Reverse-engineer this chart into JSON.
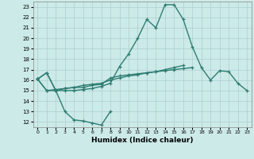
{
  "xlabel": "Humidex (Indice chaleur)",
  "xlim": [
    -0.5,
    23.5
  ],
  "ylim": [
    11.5,
    23.5
  ],
  "yticks": [
    12,
    13,
    14,
    15,
    16,
    17,
    18,
    19,
    20,
    21,
    22,
    23
  ],
  "xticks": [
    0,
    1,
    2,
    3,
    4,
    5,
    6,
    7,
    8,
    9,
    10,
    11,
    12,
    13,
    14,
    15,
    16,
    17,
    18,
    19,
    20,
    21,
    22,
    23
  ],
  "background_color": "#cceae8",
  "grid_color": "#aacfcd",
  "line_color": "#2e7d72",
  "line_width": 1.0,
  "marker": "+",
  "marker_size": 3.5,
  "series": [
    [
      16.1,
      16.7,
      15.0,
      13.0,
      12.2,
      12.1,
      11.9,
      11.7,
      13.0,
      null,
      null,
      null,
      null,
      null,
      null,
      null,
      null,
      null,
      null,
      null,
      null,
      null,
      null,
      null
    ],
    [
      16.1,
      15.0,
      15.0,
      15.2,
      15.3,
      15.3,
      15.5,
      15.6,
      16.2,
      16.4,
      16.5,
      16.6,
      16.7,
      16.8,
      16.9,
      17.0,
      17.1,
      17.2,
      null,
      null,
      null,
      null,
      null,
      null
    ],
    [
      16.1,
      15.0,
      15.1,
      15.2,
      15.3,
      15.5,
      15.6,
      15.7,
      16.0,
      16.2,
      16.4,
      16.5,
      16.7,
      16.8,
      17.0,
      17.2,
      17.4,
      null,
      null,
      null,
      null,
      null,
      null,
      null
    ],
    [
      16.1,
      16.7,
      15.0,
      15.0,
      15.0,
      15.1,
      15.2,
      15.4,
      15.7,
      17.3,
      18.5,
      20.0,
      21.8,
      21.0,
      23.2,
      23.2,
      21.8,
      19.2,
      17.2,
      16.0,
      16.9,
      16.8,
      15.7,
      15.0
    ]
  ]
}
